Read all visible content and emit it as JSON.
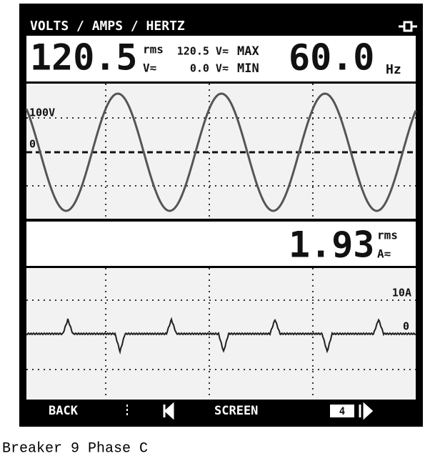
{
  "header": {
    "title": "VOLTS / AMPS / HERTZ"
  },
  "voltage": {
    "reading": "120.5",
    "unit_top": "rms",
    "unit_bottom": "V≂",
    "max_value": "120.5 V≂",
    "min_value": "0.0 V≂",
    "max_label": "MAX",
    "min_label": "MIN",
    "frequency": "60.0",
    "frequency_unit": "Hz",
    "scale_label": "100V",
    "zero_label": "0"
  },
  "current": {
    "reading": "1.93",
    "unit_top": "rms",
    "unit_bottom": "A≂",
    "scale_label": "10A",
    "zero_label": "0"
  },
  "softkeys": {
    "back": "BACK",
    "screen": "SCREEN",
    "page": "4"
  },
  "caption": "Breaker 9 Phase C"
}
